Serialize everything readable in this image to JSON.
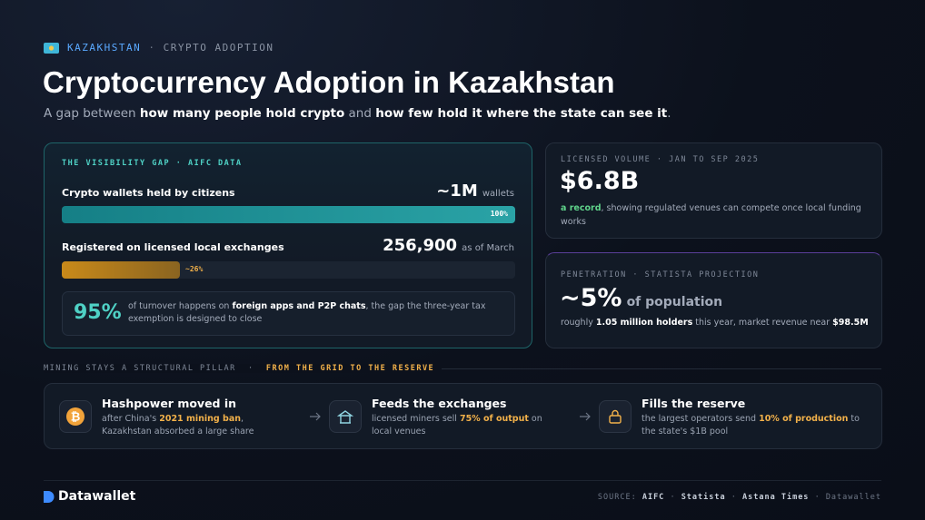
{
  "header": {
    "country": "KAZAKHSTAN",
    "separator": "·",
    "kicker": "CRYPTO ADOPTION",
    "title": "Cryptocurrency Adoption in Kazakhstan",
    "subtitle": [
      "A gap between ",
      "how many people hold crypto",
      " and ",
      "how few hold it where the state can see it",
      "."
    ]
  },
  "visibility": {
    "label": "THE VISIBILITY GAP · AIFC DATA",
    "rows": [
      {
        "label": "Crypto wallets held by citizens",
        "figure": "~1M",
        "unit": "wallets",
        "bar_value": 100,
        "bar_label": "100%"
      },
      {
        "label": "Registered on licensed local exchanges",
        "figure": "256,900",
        "unit": "as of March",
        "bar_value": 26,
        "bar_label": "~26%"
      }
    ],
    "note": {
      "figure": "95%",
      "text": [
        "of turnover happens on ",
        "foreign apps and P2P chats",
        ", the gap the three-year tax exemption is designed to close"
      ]
    }
  },
  "volume": {
    "label": "LICENSED VOLUME · JAN TO SEP 2025",
    "figure": "$6.8B",
    "text": [
      "a record",
      ", showing regulated venues can compete once local funding works"
    ]
  },
  "penetration": {
    "label": "PENETRATION · STATISTA PROJECTION",
    "figure": "~5%",
    "unit": "of population",
    "text": [
      "roughly ",
      "1.05 million holders",
      " this year, market revenue near ",
      "$98.5M"
    ]
  },
  "mining": {
    "label": "MINING STAYS A STRUCTURAL PILLAR",
    "separator": "·",
    "highlight": "FROM THE GRID TO THE RESERVE",
    "steps": [
      {
        "title": "Hashpower moved in",
        "text": [
          "after China's ",
          "2021 mining ban",
          ", Kazakhstan absorbed a large share"
        ]
      },
      {
        "title": "Feeds the exchanges",
        "text": [
          "licensed miners sell ",
          "75% of output",
          " on local venues"
        ]
      },
      {
        "title": "Fills the reserve",
        "text": [
          "the largest operators send ",
          "10% of production",
          " to the state's $1B pool"
        ]
      }
    ]
  },
  "footer": {
    "brand": "Datawallet",
    "source_label": "SOURCE:",
    "sources": [
      "AIFC",
      "Statista",
      "Astana Times",
      "Datawallet"
    ],
    "separator": "·"
  }
}
